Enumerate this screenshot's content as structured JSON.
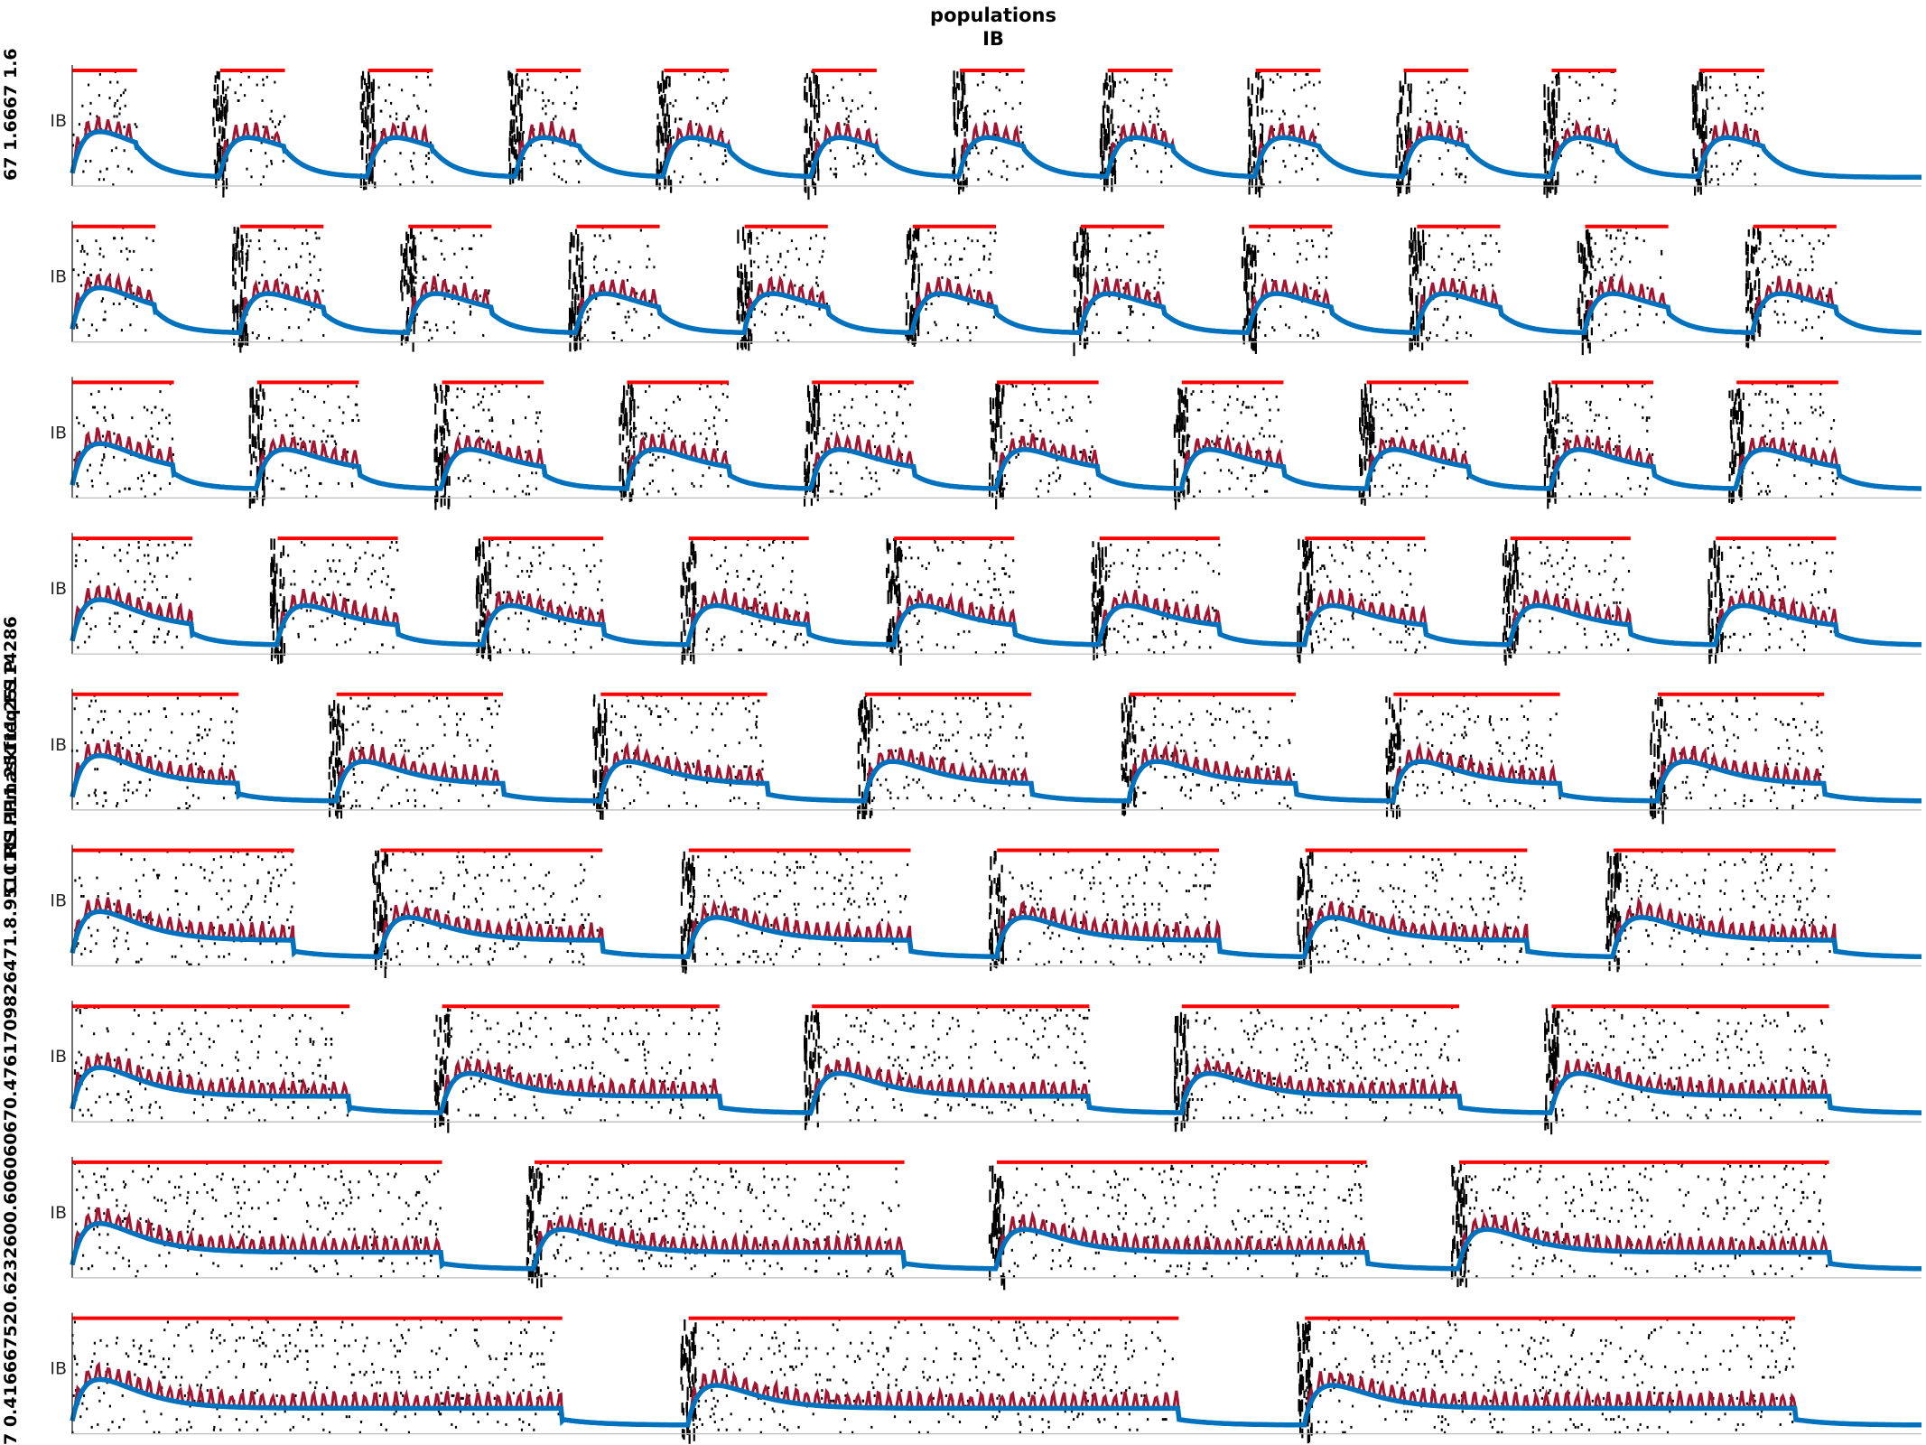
{
  "figure": {
    "title_line1": "populations",
    "title_line2": "IB",
    "left_label_fragments": [
      "7 0.416667520.6232600.606060670.4761709826471.8.9511111.111.25111.25114286",
      "C C RS PPmaskfreq FS P",
      "67 1.6667 1.6"
    ]
  },
  "colors": {
    "raster": "#000000",
    "thin_trace": "#a2142f",
    "thick_trace": "#0072bd",
    "marker_bar": "#ff0000",
    "axis": "#262626"
  },
  "chart_data": {
    "type": "line",
    "description_of_panels": "stacked raster + population activity panels, one per parameter row",
    "ytick_label": "IB",
    "panels": [
      {
        "bursts": 12,
        "period": 0.08,
        "active": 0.035
      },
      {
        "bursts": 11,
        "period": 0.0909,
        "active": 0.045
      },
      {
        "bursts": 10,
        "period": 0.1,
        "active": 0.055
      },
      {
        "bursts": 9,
        "period": 0.1111,
        "active": 0.065
      },
      {
        "bursts": 7,
        "period": 0.1429,
        "active": 0.09
      },
      {
        "bursts": 6,
        "period": 0.1667,
        "active": 0.12
      },
      {
        "bursts": 5,
        "period": 0.2,
        "active": 0.15
      },
      {
        "bursts": 4,
        "period": 0.25,
        "active": 0.2
      },
      {
        "bursts": 3,
        "period": 0.3333,
        "active": 0.265
      }
    ],
    "xlim": [
      0,
      1
    ]
  }
}
